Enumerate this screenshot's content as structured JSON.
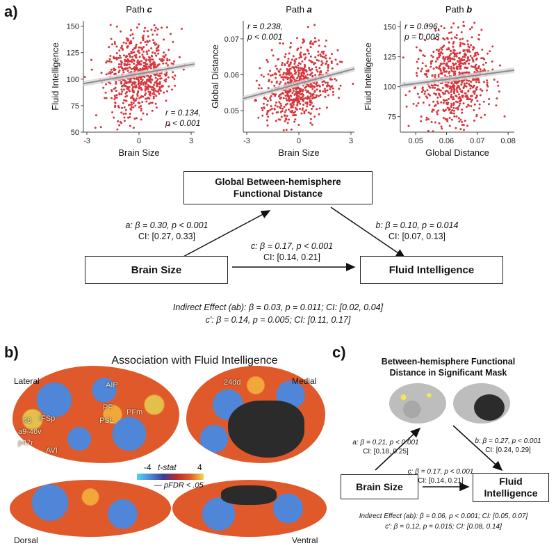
{
  "panel_a": {
    "letter": "a)",
    "plots": [
      {
        "title_prefix": "Path ",
        "title_path": "c",
        "xlabel": "Brain Size",
        "ylabel": "Fluid Intelligence",
        "xticks": [
          "-3",
          "0",
          "3"
        ],
        "yticks": [
          "150",
          "125",
          "100",
          "75",
          "50"
        ],
        "stat_r": "r = 0.134,",
        "stat_p": "p < 0.001"
      },
      {
        "title_prefix": "Path ",
        "title_path": "a",
        "xlabel": "Brain Size",
        "ylabel": "Global Distance",
        "xticks": [
          "-3",
          "0",
          "3"
        ],
        "yticks": [
          "0.07",
          "0.06",
          "0.05"
        ],
        "stat_r": "r = 0.238,",
        "stat_p": "p < 0.001"
      },
      {
        "title_prefix": "Path ",
        "title_path": "b",
        "xlabel": "Global Distance",
        "ylabel": "Fluid Intelligence",
        "xticks": [
          "0.05",
          "0.06",
          "0.07",
          "0.08"
        ],
        "yticks": [
          "150",
          "125",
          "100",
          "75"
        ],
        "stat_r": "r = 0.096,",
        "stat_p": "p = 0.008"
      }
    ],
    "mediator_line1": "Global Between-hemisphere",
    "mediator_line2": "Functional Distance",
    "brain_size": "Brain Size",
    "fluid_intel": "Fluid Intelligence",
    "path_a_stat": "a: β = 0.30, p < 0.001",
    "path_a_ci": "CI: [0.27, 0.33]",
    "path_b_stat": "b: β = 0.10, p = 0.014",
    "path_b_ci": "CI: [0.07, 0.13]",
    "path_c_stat": "c: β = 0.17, p < 0.001",
    "path_c_ci": "CI: [0.14, 0.21]",
    "indirect": "Indirect Effect (ab): β = 0.03, p = 0.011; CI: [0.02, 0.04]",
    "cprime": "c': β = 0.14, p = 0.005; CI: [0.11, 0.17]"
  },
  "panel_b": {
    "letter": "b)",
    "title": "Association with Fluid Intelligence",
    "lateral": "Lateral",
    "medial": "Medial",
    "dorsal": "Dorsal",
    "ventral": "Ventral",
    "region_labels": [
      "AIP",
      "24dd",
      "PF",
      "PFm",
      "PSL",
      "46",
      "IFSp",
      "a9-46v",
      "p47r",
      "AVI"
    ],
    "cbar_min": "-4",
    "cbar_max": "4",
    "cbar_label": "t-stat",
    "fdr_label": "— pFDR < .05"
  },
  "panel_c": {
    "letter": "c)",
    "title_line1": "Between-hemisphere Functional",
    "title_line2": "Distance in Significant Mask",
    "brain_size": "Brain Size",
    "fluid_line1": "Fluid",
    "fluid_line2": "Intelligence",
    "path_a_stat": "a: β = 0.21, p < 0.001",
    "path_a_ci": "CI: [0.18, 0.25]",
    "path_b_stat": "b: β = 0.27, p < 0.001",
    "path_b_ci": "CI: [0.24, 0.29]",
    "path_c_stat": "c: β = 0.17, p < 0.001",
    "path_c_ci": "CI: [0.14, 0.21]",
    "indirect": "Indirect Effect (ab): β = 0.06, p < 0.001; CI: [0.05, 0.07]",
    "cprime": "c': β = 0.12, p = 0.015; CI: [0.08, 0.14]"
  },
  "colors": {
    "point": "#d6363c",
    "fit": "#8a8a8a",
    "ci": "#d8d8d8",
    "brain_orange": "#e0592a",
    "brain_blue": "#4f86d8",
    "mask": "#2b2b2b",
    "sig": "#f2e94e"
  },
  "chart_data": [
    {
      "type": "scatter",
      "title": "Path c",
      "xlabel": "Brain Size",
      "ylabel": "Fluid Intelligence",
      "xlim": [
        -3.2,
        3.2
      ],
      "ylim": [
        50,
        155
      ],
      "fit": {
        "intercept": 105,
        "slope": 2.9
      },
      "r": 0.134,
      "n": 700,
      "seed": 11,
      "xsd": 1.0,
      "ysd": 19
    },
    {
      "type": "scatter",
      "title": "Path a",
      "xlabel": "Brain Size",
      "ylabel": "Global Distance",
      "xlim": [
        -3.2,
        3.2
      ],
      "ylim": [
        0.044,
        0.075
      ],
      "fit": {
        "intercept": 0.0575,
        "slope": 0.0013
      },
      "r": 0.238,
      "n": 700,
      "seed": 23,
      "xsd": 1.0,
      "ysd": 0.0052
    },
    {
      "type": "scatter",
      "title": "Path b",
      "xlabel": "Global Distance",
      "ylabel": "Fluid Intelligence",
      "xlim": [
        0.045,
        0.082
      ],
      "ylim": [
        62,
        155
      ],
      "fit": {
        "intercept": 107,
        "slope": 350
      },
      "r": 0.096,
      "n": 700,
      "seed": 37,
      "xmean": 0.0625,
      "xsd": 0.0055,
      "ysd": 19
    }
  ]
}
